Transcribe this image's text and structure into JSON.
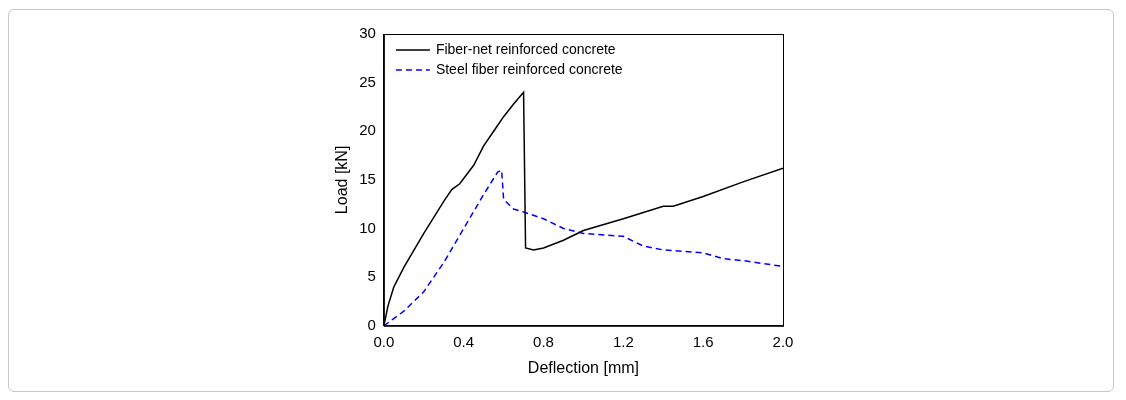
{
  "chart_data": {
    "type": "line",
    "x_label": "Deflection [mm]",
    "y_label": "Load [kN]",
    "xlim": [
      0,
      2
    ],
    "xticks": [
      {
        "value": 0,
        "label": "0.0"
      },
      0.4,
      0.8,
      1.2,
      1.6,
      {
        "value": 2,
        "label": "2.0"
      }
    ],
    "ylim": [
      0,
      30
    ],
    "yticks": [
      0,
      5,
      10,
      15,
      20,
      25,
      30
    ],
    "grid": false,
    "legend": "upper left",
    "series": [
      {
        "name": "Fiber-net reinforced concrete",
        "color": "#000000",
        "line_style": "solid",
        "x": [
          0,
          0.02,
          0.05,
          0.1,
          0.2,
          0.3,
          0.34,
          0.38,
          0.45,
          0.5,
          0.55,
          0.6,
          0.65,
          0.7,
          0.71,
          0.75,
          0.8,
          0.9,
          1.0,
          1.2,
          1.4,
          1.45,
          1.6,
          1.8,
          2.0
        ],
        "values": [
          0,
          2,
          4,
          6,
          9.5,
          12.8,
          14,
          14.6,
          16.5,
          18.5,
          20,
          21.5,
          22.8,
          24,
          8,
          7.8,
          8,
          8.8,
          9.8,
          11,
          12.3,
          12.3,
          13.3,
          14.8,
          16.2
        ]
      },
      {
        "name": "Steel fiber reinforced concrete",
        "color": "#0000ff",
        "line_style": "dashed",
        "x": [
          0,
          0.1,
          0.2,
          0.3,
          0.4,
          0.5,
          0.57,
          0.59,
          0.6,
          0.65,
          0.7,
          0.8,
          0.9,
          1.0,
          1.2,
          1.3,
          1.4,
          1.6,
          1.7,
          1.8,
          2.0
        ],
        "values": [
          0,
          1.5,
          3.5,
          6.5,
          10,
          13.5,
          15.8,
          16,
          13,
          12,
          11.7,
          11,
          10,
          9.5,
          9.2,
          8.2,
          7.8,
          7.5,
          6.9,
          6.7,
          6.1
        ]
      }
    ]
  }
}
